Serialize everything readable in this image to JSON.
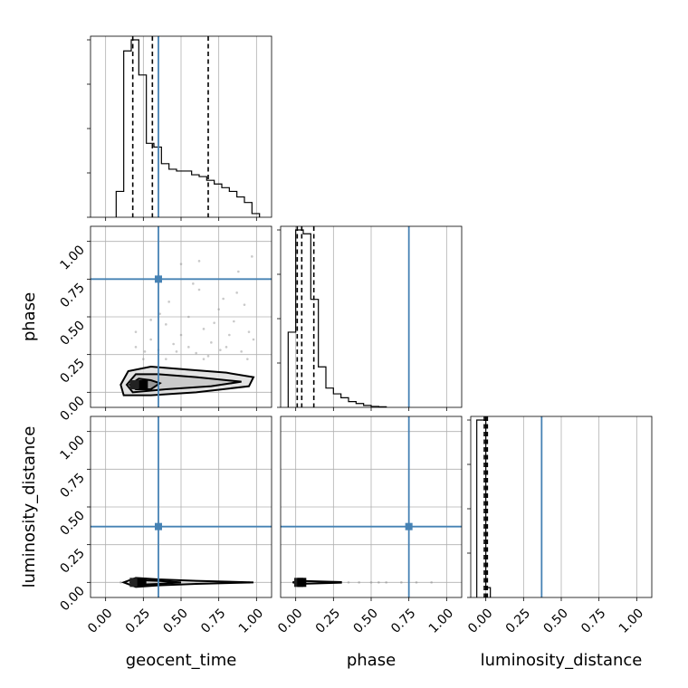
{
  "figure": {
    "type": "corner",
    "truth_color": "#4682b4",
    "hist_color": "#000000",
    "grid": true
  },
  "chart_data": {
    "type": "corner",
    "parameters": [
      "geocent_time",
      "phase",
      "luminosity_distance"
    ],
    "ticks": [
      "0.00",
      "0.25",
      "0.50",
      "0.75",
      "1.00"
    ],
    "tick_values": [
      0,
      0.25,
      0.5,
      0.75,
      1.0
    ],
    "axis_range": [
      -0.1,
      1.1
    ],
    "truths": {
      "geocent_time": 0.35,
      "phase": 0.75,
      "luminosity_distance": 0.37
    },
    "quantiles": {
      "geocent_time": [
        0.18,
        0.31,
        0.68
      ],
      "phase": [
        0.01,
        0.04,
        0.12
      ],
      "luminosity_distance": [
        -0.01,
        0.0,
        0.01
      ]
    },
    "histograms": {
      "geocent_time": {
        "edges": [
          0.07,
          0.12,
          0.17,
          0.22,
          0.27,
          0.32,
          0.37,
          0.42,
          0.47,
          0.52,
          0.57,
          0.62,
          0.67,
          0.72,
          0.77,
          0.82,
          0.87,
          0.92,
          0.97,
          1.02
        ],
        "counts": [
          0.14,
          0.9,
          0.96,
          0.77,
          0.4,
          0.38,
          0.29,
          0.26,
          0.25,
          0.25,
          0.23,
          0.22,
          0.2,
          0.18,
          0.16,
          0.14,
          0.11,
          0.08,
          0.02
        ]
      },
      "phase": {
        "edges": [
          -0.05,
          0.0,
          0.05,
          0.1,
          0.15,
          0.2,
          0.25,
          0.3,
          0.35,
          0.4,
          0.45,
          0.5,
          0.55,
          0.6
        ],
        "counts": [
          0.39,
          0.92,
          0.9,
          0.56,
          0.21,
          0.1,
          0.07,
          0.05,
          0.03,
          0.02,
          0.01,
          0.005,
          0.003
        ]
      },
      "luminosity_distance": {
        "edges": [
          -0.06,
          -0.03,
          0.0,
          0.03
        ],
        "counts": [
          0.9,
          0.9,
          0.05
        ]
      }
    },
    "scatter_geocent_phase": [
      [
        0.2,
        0.3
      ],
      [
        0.25,
        0.22
      ],
      [
        0.3,
        0.35
      ],
      [
        0.35,
        0.28
      ],
      [
        0.4,
        0.45
      ],
      [
        0.45,
        0.32
      ],
      [
        0.5,
        0.38
      ],
      [
        0.55,
        0.5
      ],
      [
        0.6,
        0.26
      ],
      [
        0.65,
        0.42
      ],
      [
        0.7,
        0.33
      ],
      [
        0.75,
        0.55
      ],
      [
        0.8,
        0.3
      ],
      [
        0.85,
        0.47
      ],
      [
        0.9,
        0.27
      ],
      [
        0.95,
        0.4
      ],
      [
        0.98,
        0.35
      ],
      [
        0.42,
        0.6
      ],
      [
        0.62,
        0.68
      ],
      [
        0.78,
        0.62
      ],
      [
        0.92,
        0.58
      ],
      [
        0.5,
        0.85
      ],
      [
        0.62,
        0.87
      ],
      [
        0.97,
        0.9
      ],
      [
        0.88,
        0.8
      ],
      [
        0.3,
        0.48
      ],
      [
        0.2,
        0.4
      ],
      [
        0.55,
        0.3
      ],
      [
        0.68,
        0.24
      ],
      [
        0.82,
        0.38
      ],
      [
        0.47,
        0.27
      ],
      [
        0.36,
        0.52
      ],
      [
        0.72,
        0.46
      ],
      [
        0.87,
        0.66
      ],
      [
        0.58,
        0.72
      ],
      [
        0.94,
        0.22
      ],
      [
        0.26,
        0.27
      ],
      [
        0.4,
        0.22
      ],
      [
        0.65,
        0.22
      ],
      [
        0.76,
        0.28
      ]
    ],
    "scatter_geocent_lumdist": [
      [
        0.1,
        0.0
      ],
      [
        0.4,
        0.0
      ],
      [
        0.5,
        0.0
      ],
      [
        0.6,
        0.0
      ],
      [
        0.7,
        0.0
      ],
      [
        0.8,
        0.0
      ],
      [
        0.9,
        0.0
      ],
      [
        0.95,
        0.0
      ]
    ],
    "scatter_phase_lumdist": [
      [
        0.2,
        0.0
      ],
      [
        0.3,
        0.0
      ],
      [
        0.35,
        0.0
      ],
      [
        0.42,
        0.0
      ],
      [
        0.5,
        0.0
      ],
      [
        0.55,
        0.0
      ],
      [
        0.6,
        0.0
      ],
      [
        0.7,
        0.0
      ],
      [
        0.8,
        0.0
      ],
      [
        0.9,
        0.0
      ]
    ],
    "contours_geocent_phase": [
      [
        [
          0.1,
          0.05
        ],
        [
          0.15,
          0.14
        ],
        [
          0.3,
          0.17
        ],
        [
          0.55,
          0.15
        ],
        [
          0.8,
          0.13
        ],
        [
          0.98,
          0.1
        ],
        [
          0.95,
          0.04
        ],
        [
          0.6,
          0.0
        ],
        [
          0.3,
          -0.02
        ],
        [
          0.12,
          -0.02
        ]
      ],
      [
        [
          0.14,
          0.05
        ],
        [
          0.2,
          0.12
        ],
        [
          0.35,
          0.12
        ],
        [
          0.6,
          0.1
        ],
        [
          0.9,
          0.07
        ],
        [
          0.7,
          0.04
        ],
        [
          0.4,
          0.02
        ],
        [
          0.18,
          0.0
        ]
      ],
      [
        [
          0.16,
          0.05
        ],
        [
          0.22,
          0.09
        ],
        [
          0.3,
          0.08
        ],
        [
          0.36,
          0.06
        ],
        [
          0.3,
          0.02
        ],
        [
          0.2,
          0.02
        ]
      ]
    ],
    "contours_geocent_lumdist": [
      [
        [
          0.12,
          0.0
        ],
        [
          0.2,
          0.03
        ],
        [
          0.35,
          0.02
        ],
        [
          0.6,
          0.01
        ],
        [
          0.98,
          0.0
        ],
        [
          0.6,
          -0.01
        ],
        [
          0.35,
          -0.02
        ],
        [
          0.2,
          -0.03
        ]
      ],
      [
        [
          0.16,
          0.0
        ],
        [
          0.22,
          0.015
        ],
        [
          0.35,
          0.01
        ],
        [
          0.5,
          0.0
        ],
        [
          0.35,
          -0.01
        ],
        [
          0.22,
          -0.015
        ]
      ]
    ],
    "contours_phase_lumdist": [
      [
        [
          -0.02,
          0.0
        ],
        [
          0.02,
          0.01
        ],
        [
          0.1,
          0.008
        ],
        [
          0.3,
          0.002
        ],
        [
          0.3,
          -0.002
        ],
        [
          0.1,
          -0.008
        ],
        [
          0.02,
          -0.01
        ]
      ]
    ],
    "density_blocks": {
      "geocent_phase": [
        [
          0.19,
          0.05
        ],
        [
          0.25,
          0.05
        ]
      ],
      "geocent_lumdist": [
        [
          0.19,
          0.0
        ],
        [
          0.24,
          0.0
        ]
      ],
      "phase_lumdist": [
        [
          0.02,
          0.0
        ],
        [
          0.04,
          0.0
        ]
      ]
    }
  }
}
